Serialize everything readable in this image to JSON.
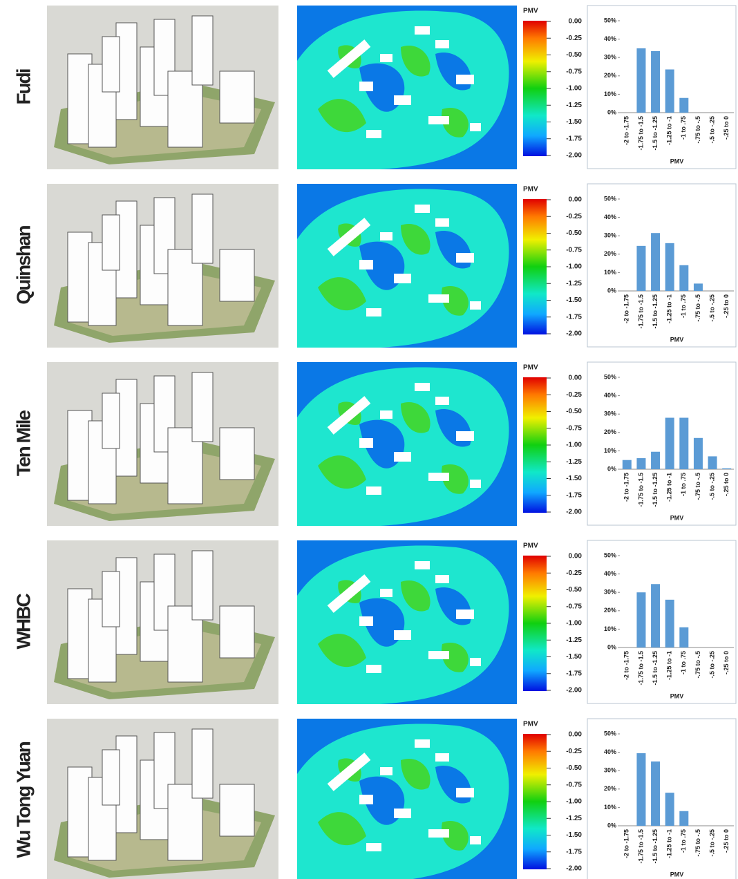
{
  "sites": [
    "Fudi",
    "Quinshan",
    "Ten Mile",
    "WHBC",
    "Wu Tong Yuan"
  ],
  "pmv_legend": {
    "title": "PMV",
    "ylim": [
      -2,
      0
    ],
    "ticks": [
      {
        "value": 0,
        "label": "0.00"
      },
      {
        "value": -0.25,
        "label": "-0.25"
      },
      {
        "value": -0.5,
        "label": "-0.50"
      },
      {
        "value": -0.75,
        "label": "-0.75"
      },
      {
        "value": -1,
        "label": "-1.00"
      },
      {
        "value": -1.25,
        "label": "-1.25"
      },
      {
        "value": -1.5,
        "label": "-1.50"
      },
      {
        "value": -1.75,
        "label": "-1.75"
      },
      {
        "value": -2,
        "label": "-2.00"
      }
    ]
  },
  "chart_data": [
    {
      "type": "bar",
      "xlabel": "PMV",
      "color": "#5b9bd5",
      "categories": [
        "-2 to -1.75",
        "-1.75 to -1.5",
        "-1.5 to -1.25",
        "-1.25 to -1",
        "-1 to .75",
        "-.75 to -.5",
        "-.5 to -.25",
        "-.25 to 0"
      ],
      "values": [
        0,
        35,
        33.5,
        23.5,
        8,
        0,
        0,
        0
      ],
      "ylim": [
        0,
        50
      ],
      "yticks": [
        {
          "value": 0,
          "label": "0%"
        },
        {
          "value": 10,
          "label": "10%"
        },
        {
          "value": 20,
          "label": "20%"
        },
        {
          "value": 30,
          "label": "30%"
        },
        {
          "value": 40,
          "label": "40%"
        },
        {
          "value": 50,
          "label": "50%"
        }
      ]
    },
    {
      "type": "bar",
      "xlabel": "PMV",
      "color": "#5b9bd5",
      "categories": [
        "-2 to -1.75",
        "-1.75 to -1.5",
        "-1.5 to -1.25",
        "-1.25 to -1",
        "-1 to .75",
        "-.75 to -.5",
        "-.5 to -.25",
        "-.25 to 0"
      ],
      "values": [
        0,
        24.5,
        31.5,
        26,
        14,
        4,
        0,
        0
      ],
      "ylim": [
        0,
        50
      ],
      "yticks": [
        {
          "value": 0,
          "label": "0%"
        },
        {
          "value": 10,
          "label": "10%"
        },
        {
          "value": 20,
          "label": "20%"
        },
        {
          "value": 30,
          "label": "30%"
        },
        {
          "value": 40,
          "label": "40%"
        },
        {
          "value": 50,
          "label": "50%"
        }
      ]
    },
    {
      "type": "bar",
      "xlabel": "PMV",
      "color": "#5b9bd5",
      "categories": [
        "-2 to -1.75",
        "-1.75 to -1.5",
        "-1.5 to -1.25",
        "-1.25 to -1",
        "-1 to .75",
        "-.75 to -.5",
        "-.5 to -.25",
        "-.25 to 0"
      ],
      "values": [
        5,
        6,
        9.5,
        28,
        28,
        17,
        7,
        0.5
      ],
      "ylim": [
        0,
        50
      ],
      "yticks": [
        {
          "value": 0,
          "label": "0%"
        },
        {
          "value": 10,
          "label": "10%"
        },
        {
          "value": 20,
          "label": "20%"
        },
        {
          "value": 30,
          "label": "30%"
        },
        {
          "value": 40,
          "label": "40%"
        },
        {
          "value": 50,
          "label": "50%"
        }
      ]
    },
    {
      "type": "bar",
      "xlabel": "PMV",
      "color": "#5b9bd5",
      "categories": [
        "-2 to -1.75",
        "-1.75 to -1.5",
        "-1.5 to -1.25",
        "-1.25 to -1",
        "-1 to .75",
        "-.75 to -.5",
        "-.5 to -.25",
        "-.25 to 0"
      ],
      "values": [
        0,
        30,
        34.5,
        26,
        11,
        0,
        0,
        0
      ],
      "ylim": [
        0,
        50
      ],
      "yticks": [
        {
          "value": 0,
          "label": "0%"
        },
        {
          "value": 10,
          "label": "10%"
        },
        {
          "value": 20,
          "label": "20%"
        },
        {
          "value": 30,
          "label": "30%"
        },
        {
          "value": 40,
          "label": "40%"
        },
        {
          "value": 50,
          "label": "50%"
        }
      ]
    },
    {
      "type": "bar",
      "xlabel": "PMV",
      "color": "#5b9bd5",
      "categories": [
        "-2 to -1.75",
        "-1.75 to -1.5",
        "-1.5 to -1.25",
        "-1.25 to -1",
        "-1 to .75",
        "-.75 to -.5",
        "-.5 to -.25",
        "-.25 to 0"
      ],
      "values": [
        0,
        39.5,
        35,
        18,
        8,
        0,
        0,
        0
      ],
      "ylim": [
        0,
        50
      ],
      "yticks": [
        {
          "value": 0,
          "label": "0%"
        },
        {
          "value": 10,
          "label": "10%"
        },
        {
          "value": 20,
          "label": "20%"
        },
        {
          "value": 30,
          "label": "30%"
        },
        {
          "value": 40,
          "label": "40%"
        },
        {
          "value": 50,
          "label": "50%"
        }
      ]
    }
  ]
}
